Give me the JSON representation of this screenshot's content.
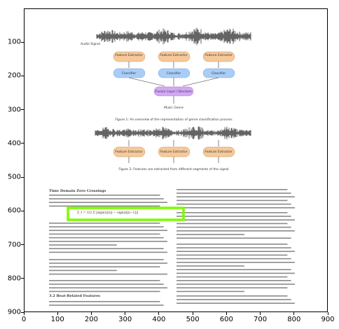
{
  "axes": {
    "x_ticks": [
      "0",
      "100",
      "200",
      "300",
      "400",
      "500",
      "600",
      "700",
      "800",
      "900"
    ],
    "y_ticks": [
      "100",
      "200",
      "300",
      "400",
      "500",
      "600",
      "700",
      "800",
      "900"
    ]
  },
  "document": {
    "diagram1": {
      "audio_label": "Audio Signal",
      "row1": [
        "Feature Extractor",
        "Feature Extractor",
        "Feature Extractor"
      ],
      "row2": [
        "Classifier",
        "Classifier",
        "Classifier"
      ],
      "fusion": "Fusion Layer / Decision",
      "output": "Music Genre",
      "caption": "Figure 1: An overview of the representation of genre classification process"
    },
    "diagram2": {
      "row1": [
        "Feature Extractor",
        "Feature Extractor",
        "Feature Extractor"
      ],
      "caption": "Figure 2: Features are extracted from different segments of the signal"
    },
    "left_col": {
      "heading": "Time Domain Zero Crossings",
      "equation": "Z_t = 1/2 Σ |sign(x[n]) − sign(x[n−1])|",
      "section": "3.2   Beat-Related Features"
    },
    "highlight_color": "#7cfc00"
  }
}
